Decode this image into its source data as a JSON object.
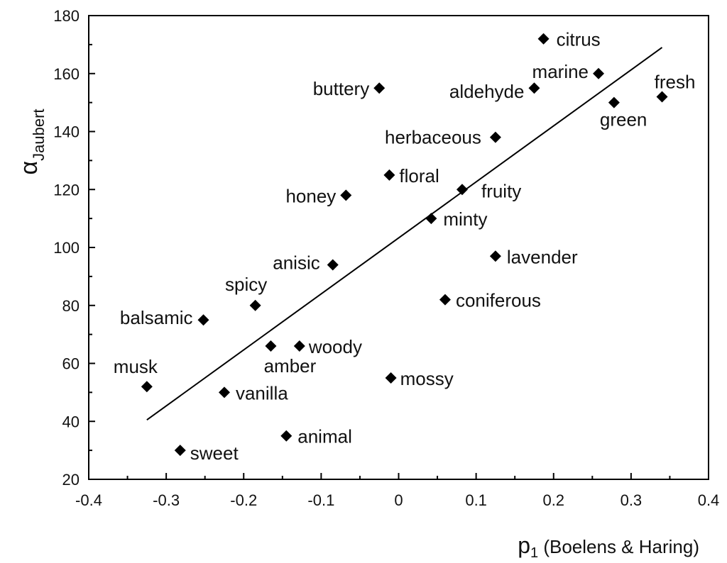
{
  "chart_data": {
    "type": "scatter",
    "title": "",
    "xlabel": {
      "main": "p",
      "sub": "1",
      "rest": " (Boelens & Haring)"
    },
    "ylabel": {
      "main": "α",
      "sub": "Jaubert"
    },
    "xlim": [
      -0.4,
      0.4
    ],
    "ylim": [
      20,
      180
    ],
    "xticks": [
      -0.4,
      -0.3,
      -0.2,
      -0.1,
      0,
      0.1,
      0.2,
      0.3,
      0.4
    ],
    "xtick_labels": [
      "-0.4",
      "-0.3",
      "-0.2",
      "-0.1",
      "0",
      "0.1",
      "0.2",
      "0.3",
      "0.4"
    ],
    "yticks": [
      20,
      40,
      60,
      80,
      100,
      120,
      140,
      160,
      180
    ],
    "ytick_labels": [
      "20",
      "40",
      "60",
      "80",
      "100",
      "120",
      "140",
      "160",
      "180"
    ],
    "grid": false,
    "marker": "diamond",
    "points": [
      {
        "label": "citrus",
        "x": 0.187,
        "y": 172
      },
      {
        "label": "marine",
        "x": 0.258,
        "y": 160
      },
      {
        "label": "fresh",
        "x": 0.34,
        "y": 152
      },
      {
        "label": "buttery",
        "x": -0.025,
        "y": 155
      },
      {
        "label": "aldehyde",
        "x": 0.175,
        "y": 155
      },
      {
        "label": "green",
        "x": 0.278,
        "y": 150
      },
      {
        "label": "herbaceous",
        "x": 0.125,
        "y": 138
      },
      {
        "label": "floral",
        "x": -0.012,
        "y": 125
      },
      {
        "label": "honey",
        "x": -0.068,
        "y": 118
      },
      {
        "label": "fruity",
        "x": 0.082,
        "y": 120
      },
      {
        "label": "minty",
        "x": 0.042,
        "y": 110
      },
      {
        "label": "lavender",
        "x": 0.125,
        "y": 97
      },
      {
        "label": "anisic",
        "x": -0.085,
        "y": 94
      },
      {
        "label": "coniferous",
        "x": 0.06,
        "y": 82
      },
      {
        "label": "spicy",
        "x": -0.185,
        "y": 80
      },
      {
        "label": "balsamic",
        "x": -0.252,
        "y": 75
      },
      {
        "label": "amber",
        "x": -0.165,
        "y": 66
      },
      {
        "label": "woody",
        "x": -0.128,
        "y": 66
      },
      {
        "label": "mossy",
        "x": -0.01,
        "y": 55
      },
      {
        "label": "musk",
        "x": -0.325,
        "y": 52
      },
      {
        "label": "vanilla",
        "x": -0.225,
        "y": 50
      },
      {
        "label": "animal",
        "x": -0.145,
        "y": 35
      },
      {
        "label": "sweet",
        "x": -0.282,
        "y": 30
      }
    ],
    "trendline": {
      "x": [
        -0.325,
        0.34
      ],
      "y": [
        40.5,
        169
      ]
    }
  }
}
